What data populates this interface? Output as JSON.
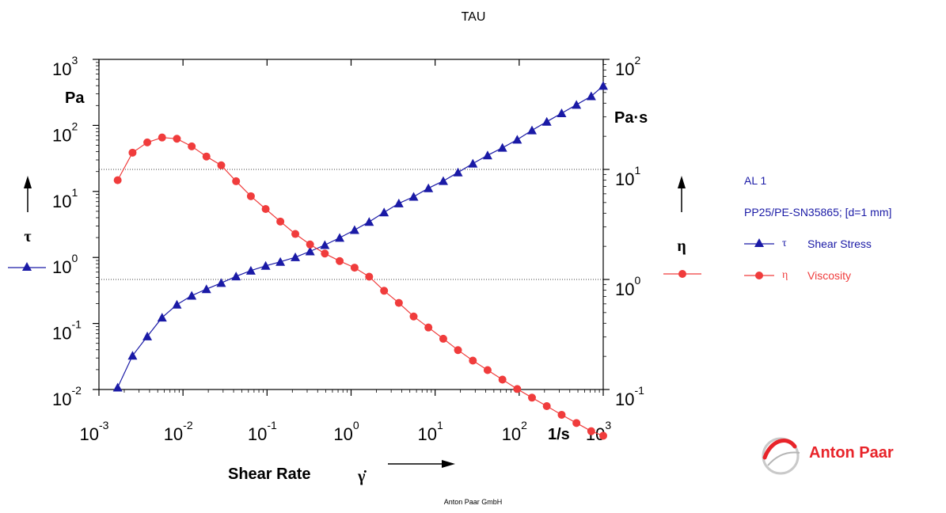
{
  "chart_data": {
    "type": "line",
    "title": "TAU",
    "x_scale": "log",
    "y_scale": "log",
    "xlim": [
      0.001,
      1000
    ],
    "xlabel": "Shear Rate",
    "xlabel_symbol": "γ̇",
    "x_unit": "1/s",
    "x_ticks": [
      {
        "base": "10",
        "exp": "-3"
      },
      {
        "base": "10",
        "exp": "-2"
      },
      {
        "base": "10",
        "exp": "-1"
      },
      {
        "base": "10",
        "exp": "0"
      },
      {
        "base": "10",
        "exp": "1"
      },
      {
        "base": "10",
        "exp": "2"
      },
      {
        "base": "10",
        "exp": "3"
      }
    ],
    "y_left": {
      "symbol": "τ",
      "unit": "Pa",
      "lim": [
        0.01,
        1000
      ],
      "ticks": [
        {
          "base": "10",
          "exp": "3"
        },
        {
          "base": "10",
          "exp": "2"
        },
        {
          "base": "10",
          "exp": "1"
        },
        {
          "base": "10",
          "exp": "0"
        },
        {
          "base": "10",
          "exp": "-1"
        },
        {
          "base": "10",
          "exp": "-2"
        }
      ]
    },
    "y_right": {
      "symbol": "η",
      "unit": "Pa·s",
      "lim": [
        0.1,
        100
      ],
      "ticks": [
        {
          "base": "10",
          "exp": "2"
        },
        {
          "base": "10",
          "exp": "1"
        },
        {
          "base": "10",
          "exp": "0"
        },
        {
          "base": "10",
          "exp": "-1"
        }
      ]
    },
    "reference_lines": [
      {
        "axis": "right",
        "value": 10
      },
      {
        "axis": "right",
        "value": 1
      }
    ],
    "legend_placement": "right",
    "series": [
      {
        "name": "Shear Stress",
        "symbol": "τ",
        "axis": "left",
        "color": "#1a1aa6",
        "marker": "triangle",
        "x": [
          0.00167,
          0.00251,
          0.00376,
          0.00564,
          0.00846,
          0.0127,
          0.019,
          0.0285,
          0.0428,
          0.0642,
          0.0963,
          0.144,
          0.217,
          0.325,
          0.487,
          0.731,
          1.1,
          1.64,
          2.47,
          3.7,
          5.55,
          8.32,
          12.5,
          18.7,
          28.1,
          42.1,
          63.2,
          94.8,
          142,
          213,
          320,
          480,
          720,
          1000
        ],
        "y": [
          0.0107,
          0.0325,
          0.0638,
          0.123,
          0.193,
          0.264,
          0.331,
          0.411,
          0.517,
          0.632,
          0.747,
          0.859,
          1.008,
          1.236,
          1.544,
          1.984,
          2.607,
          3.46,
          4.82,
          6.6,
          8.32,
          11.2,
          14.4,
          19.4,
          26.4,
          35.2,
          45.8,
          60.9,
          84.2,
          113.8,
          152.8,
          205.3,
          276.7,
          398
        ]
      },
      {
        "name": "Viscosity",
        "symbol": "η",
        "axis": "right",
        "color": "#f03c3c",
        "marker": "circle",
        "x": [
          0.00167,
          0.00251,
          0.00376,
          0.00564,
          0.00846,
          0.0127,
          0.019,
          0.0285,
          0.0428,
          0.0642,
          0.0963,
          0.144,
          0.217,
          0.325,
          0.487,
          0.731,
          1.1,
          1.64,
          2.47,
          3.7,
          5.55,
          8.32,
          12.5,
          18.7,
          28.1,
          42.1,
          63.2,
          94.8,
          142,
          213,
          320,
          480,
          720,
          1000
        ],
        "y": [
          7.98,
          14.2,
          17.6,
          19.5,
          19.0,
          16.2,
          13.1,
          10.9,
          7.81,
          5.71,
          4.37,
          3.36,
          2.59,
          2.08,
          1.72,
          1.47,
          1.28,
          1.06,
          0.789,
          0.612,
          0.461,
          0.366,
          0.289,
          0.228,
          0.183,
          0.15,
          0.123,
          0.101,
          0.0843,
          0.0706,
          0.0589,
          0.0496,
          0.0418,
          0.038
        ]
      }
    ]
  },
  "legend": {
    "sample_name": "AL 1",
    "geometry": "PP25/PE-SN35865; [d=1 mm]",
    "items": [
      {
        "symbol": "τ",
        "label": "Shear Stress",
        "color": "#1a1aa6"
      },
      {
        "symbol": "η",
        "label": "Viscosity",
        "color": "#f03c3c"
      }
    ]
  },
  "logo": {
    "text": "Anton Paar",
    "color": "#e8242a"
  },
  "footer": "Anton Paar GmbH"
}
